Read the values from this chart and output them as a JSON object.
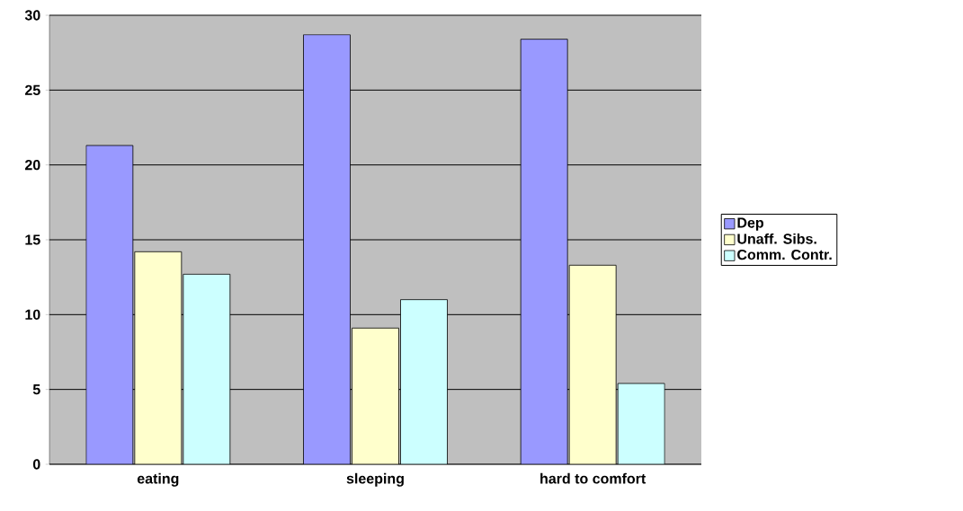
{
  "chart_data": {
    "type": "bar",
    "categories": [
      "eating",
      "sleeping",
      "hard to comfort"
    ],
    "series": [
      {
        "name": "Dep",
        "color": "#9999ff",
        "values": [
          21.3,
          28.7,
          28.4
        ]
      },
      {
        "name": "Unaff. Sibs.",
        "color": "#ffffcc",
        "values": [
          14.2,
          9.1,
          13.3
        ]
      },
      {
        "name": "Comm. Contr.",
        "color": "#ccffff",
        "values": [
          12.7,
          11.0,
          5.4
        ]
      }
    ],
    "ylim": [
      0,
      30
    ],
    "yticks": [
      0,
      5,
      10,
      15,
      20,
      25,
      30
    ],
    "grid": "y",
    "legend": "right"
  }
}
